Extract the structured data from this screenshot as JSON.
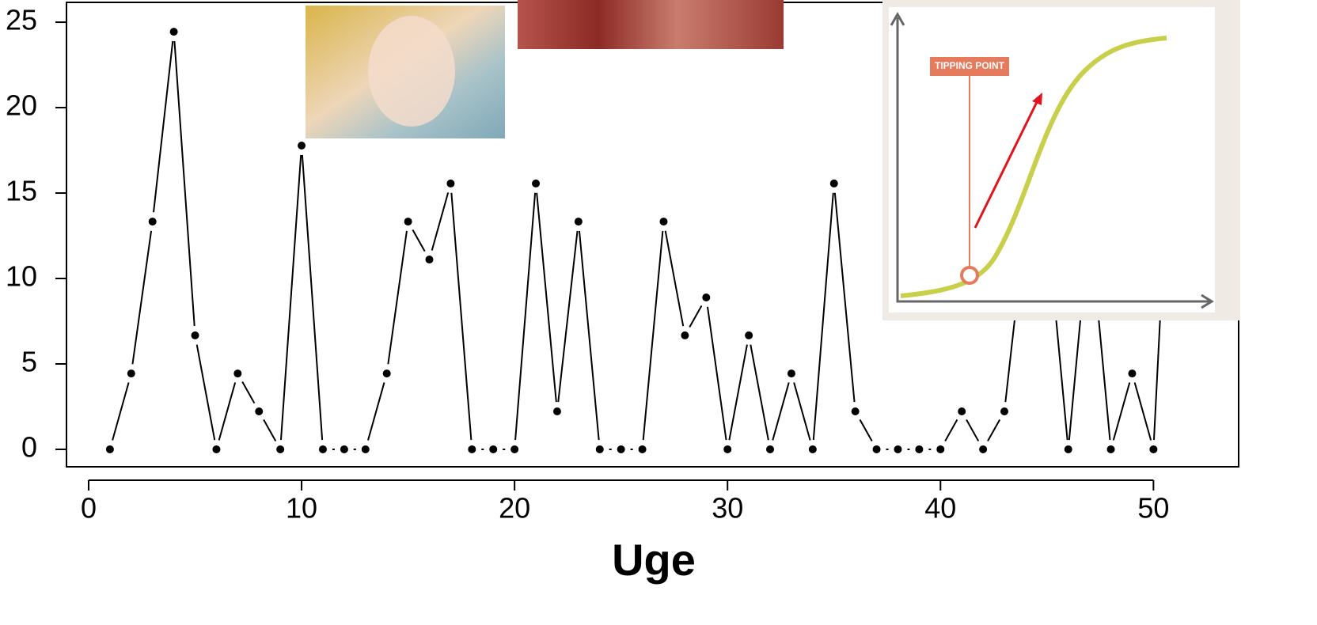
{
  "chart_data": {
    "type": "line",
    "x_label": "Uge",
    "x": [
      1,
      2,
      3,
      4,
      5,
      6,
      7,
      8,
      9,
      10,
      11,
      12,
      13,
      14,
      15,
      16,
      17,
      18,
      19,
      20,
      21,
      22,
      23,
      24,
      25,
      26,
      27,
      28,
      29,
      30,
      31,
      32,
      33,
      34,
      35,
      36,
      37,
      38,
      39,
      40,
      41,
      42,
      43,
      44,
      45,
      46,
      47,
      48,
      49,
      50,
      51
    ],
    "values": [
      0,
      4.44,
      13.33,
      24.44,
      6.67,
      0,
      4.44,
      2.22,
      0,
      17.78,
      0,
      0,
      0,
      4.44,
      13.33,
      11.11,
      15.56,
      0,
      0,
      0,
      15.56,
      2.22,
      13.33,
      0,
      0,
      0,
      13.33,
      6.67,
      8.89,
      0,
      6.67,
      0,
      4.44,
      0,
      15.56,
      2.22,
      0,
      0,
      0,
      0,
      2.22,
      0,
      2.22,
      13.33,
      13.33,
      0,
      13.33,
      0,
      4.44,
      0,
      24.44
    ],
    "color": "#000000",
    "xlim": [
      -1.04,
      54.0
    ],
    "ylim": [
      -1.02,
      26.16
    ],
    "xticks": [
      0,
      10,
      20,
      30,
      40,
      50
    ],
    "yticks": [
      0,
      5,
      10,
      15,
      20,
      25
    ],
    "inset_label": "TIPPING POINT"
  }
}
